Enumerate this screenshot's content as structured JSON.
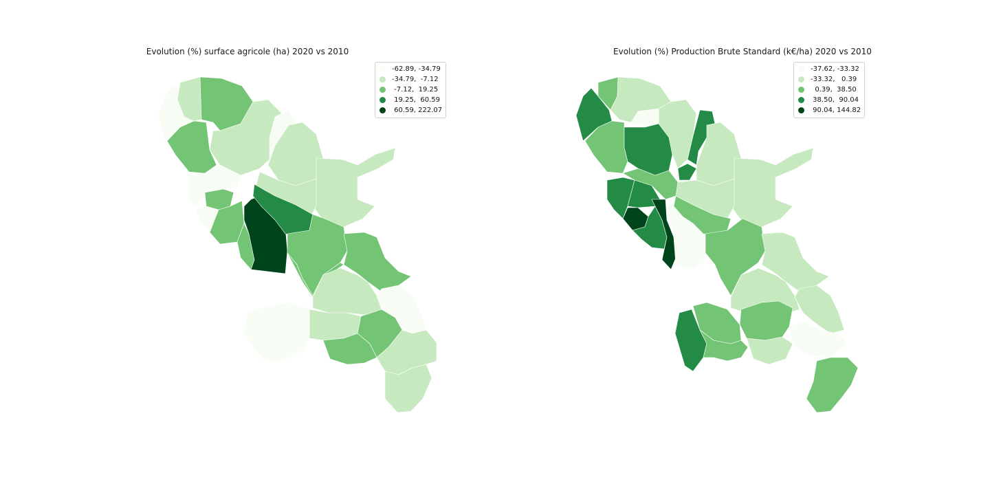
{
  "colors": {
    "c0": "#f7fcf5",
    "c1": "#c7e9c0",
    "c2": "#74c476",
    "c3": "#238b45",
    "c4": "#00441b"
  },
  "maps": [
    {
      "title": "Evolution (%) surface agricole (ha) 2020 vs 2010",
      "legend": [
        "-62.89, -34.79",
        "-34.79,  -7.12",
        " -7.12,  19.25",
        " 19.25,  60.59",
        " 60.59, 222.07"
      ]
    },
    {
      "title": "Evolution (%) Production Brute Standard (k€/ha) 2020 vs 2010",
      "legend": [
        "-37.62, -33.32",
        "-33.32,   0.39",
        "  0.39,  38.50",
        " 38.50,  90.04",
        " 90.04, 144.82"
      ]
    }
  ]
}
